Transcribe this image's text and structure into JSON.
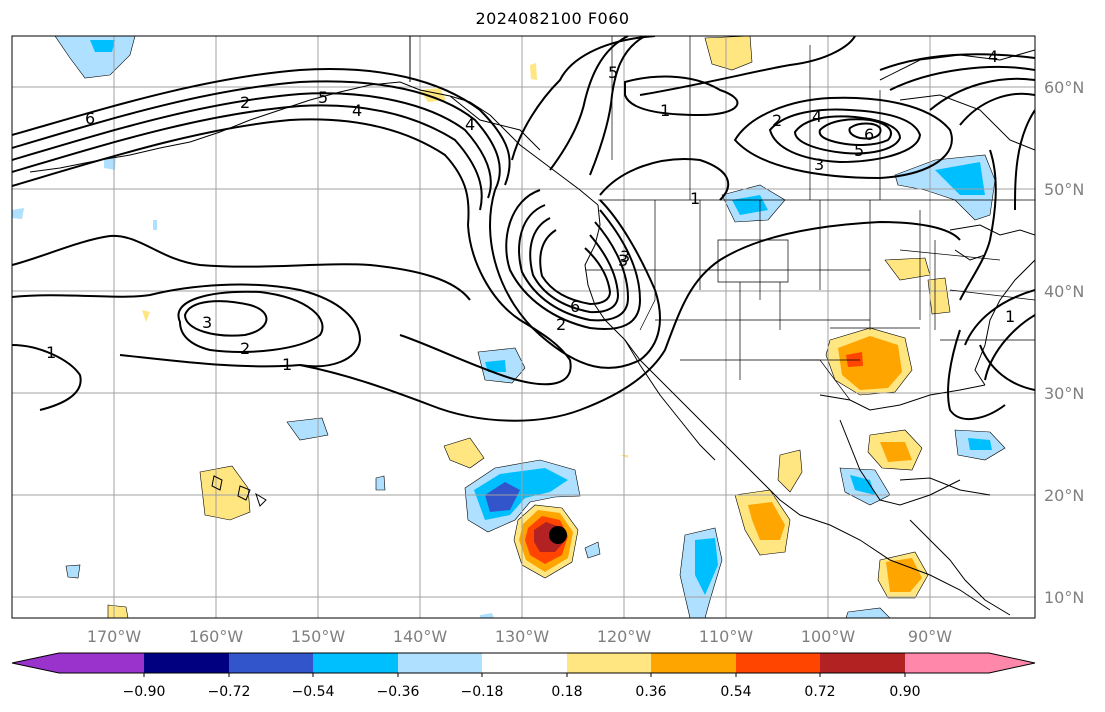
{
  "title": "2024082100 F060",
  "lat_labels": [
    "60°N",
    "50°N",
    "40°N",
    "30°N",
    "20°N",
    "10°N"
  ],
  "lon_labels": [
    "170°W",
    "160°W",
    "150°W",
    "140°W",
    "130°W",
    "120°W",
    "110°W",
    "100°W",
    "90°W"
  ],
  "colorbar": {
    "ticks": [
      "−0.90",
      "−0.72",
      "−0.54",
      "−0.36",
      "−0.18",
      "0.18",
      "0.36",
      "0.54",
      "0.72",
      "0.90"
    ],
    "colors": [
      "#9933cc",
      "#000080",
      "#3355cc",
      "#00bfff",
      "#b0e0ff",
      "#ffffff",
      "#ffe680",
      "#ffa500",
      "#ff4500",
      "#b22222",
      "#ff88aa"
    ]
  },
  "contour_labels": [
    "6",
    "5",
    "4",
    "3",
    "2",
    "1",
    "1",
    "2",
    "3",
    "1",
    "2",
    "3",
    "4",
    "5",
    "6",
    "6",
    "5",
    "4",
    "3",
    "2",
    "1",
    "4",
    "1"
  ],
  "colors": {
    "grid": "#a0a0a0",
    "coast": "#000000"
  },
  "storm_marker": "storm-center"
}
